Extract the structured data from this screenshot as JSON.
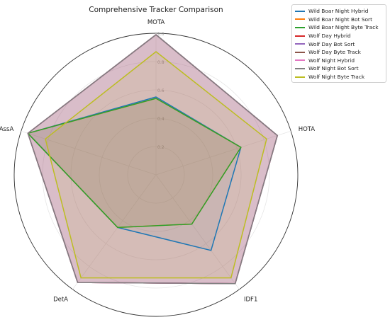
{
  "chart_data": {
    "type": "radar",
    "title": "Comprehensive Tracker Comparison",
    "axes": [
      "MOTA",
      "HOTA",
      "IDF1",
      "DetA",
      "AssA"
    ],
    "rlim": [
      0,
      1.0
    ],
    "radial_ticks": [
      "0.2",
      "0.4",
      "0.6",
      "0.8",
      "1.0"
    ],
    "grid": true,
    "legend_position": "top-right",
    "series": [
      {
        "name": "Wild Boar Night Hybrid",
        "color": "#1f77b4",
        "values": [
          0.55,
          0.63,
          0.66,
          0.46,
          0.95
        ]
      },
      {
        "name": "Wild Boar Night Bot Sort",
        "color": "#ff7f0e",
        "values": [
          0.54,
          0.63,
          0.43,
          0.46,
          0.95
        ]
      },
      {
        "name": "Wild Boar Night Byte Track",
        "color": "#2ca02c",
        "values": [
          0.54,
          0.63,
          0.43,
          0.46,
          0.95
        ]
      },
      {
        "name": "Wolf Day Hybrid",
        "color": "#d62728",
        "values": [
          0.99,
          0.9,
          0.95,
          0.94,
          0.95
        ]
      },
      {
        "name": "Wolf Day Bot Sort",
        "color": "#9467bd",
        "values": [
          0.99,
          0.9,
          0.95,
          0.94,
          0.95
        ]
      },
      {
        "name": "Wolf Day Byte Track",
        "color": "#8c564b",
        "values": [
          0.99,
          0.9,
          0.95,
          0.94,
          0.95
        ]
      },
      {
        "name": "Wolf Night Hybrid",
        "color": "#e377c2",
        "values": [
          0.99,
          0.9,
          0.95,
          0.94,
          0.95
        ]
      },
      {
        "name": "Wolf Night Bot Sort",
        "color": "#7f7f7f",
        "values": [
          0.99,
          0.9,
          0.95,
          0.94,
          0.95
        ]
      },
      {
        "name": "Wolf Night Byte Track",
        "color": "#bcbd22",
        "values": [
          0.87,
          0.82,
          0.9,
          0.9,
          0.82
        ]
      }
    ]
  }
}
